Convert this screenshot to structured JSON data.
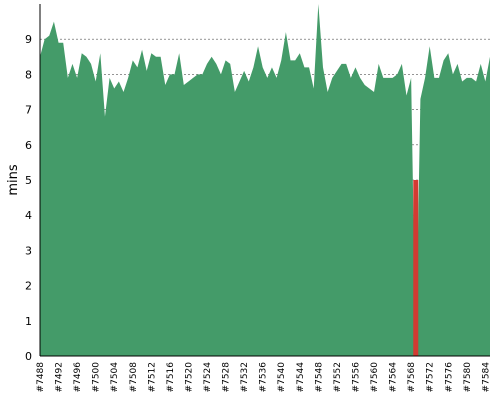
{
  "chart_data": {
    "type": "area",
    "title": "",
    "xlabel": "",
    "ylabel": "mins",
    "ylim": [
      0,
      10
    ],
    "yticks": [
      0,
      1,
      2,
      3,
      4,
      5,
      6,
      7,
      8,
      9
    ],
    "grid": "horizontal dashed",
    "x_start": 7488,
    "x_end": 7585,
    "tick_prefix": "#",
    "xticks": [
      "#7488",
      "#7492",
      "#7496",
      "#7500",
      "#7504",
      "#7508",
      "#7512",
      "#7516",
      "#7520",
      "#7524",
      "#7528",
      "#7532",
      "#7536",
      "#7540",
      "#7544",
      "#7548",
      "#7552",
      "#7556",
      "#7560",
      "#7564",
      "#7568",
      "#7572",
      "#7576",
      "#7580",
      "#7584"
    ],
    "colors": {
      "area": "#449b69",
      "highlight": "#d33a32",
      "grid": "#555555"
    },
    "series": [
      {
        "values": [
          8.5,
          9.0,
          9.1,
          9.5,
          8.9,
          8.9,
          7.9,
          8.3,
          7.9,
          8.6,
          8.5,
          8.3,
          7.8,
          8.6,
          6.8,
          7.9,
          7.6,
          7.8,
          7.5,
          7.9,
          8.4,
          8.2,
          8.7,
          8.1,
          8.6,
          8.5,
          8.5,
          7.7,
          8.0,
          8.0,
          8.6,
          7.7,
          7.8,
          7.9,
          8.0,
          8.0,
          8.3,
          8.5,
          8.3,
          8.0,
          8.4,
          8.3,
          7.5,
          7.8,
          8.1,
          7.8,
          8.2,
          8.8,
          8.2,
          7.9,
          8.2,
          7.9,
          8.4,
          9.2,
          8.4,
          8.4,
          8.6,
          8.2,
          8.2,
          7.6,
          10.0,
          8.2,
          7.5,
          7.9,
          8.1,
          8.3,
          8.3,
          7.9,
          8.2,
          7.9,
          7.7,
          7.6,
          7.5,
          8.3,
          7.9,
          7.9,
          7.9,
          8.0,
          8.3,
          7.4,
          7.9,
          0.0,
          7.3,
          7.9,
          8.8,
          7.9,
          7.9,
          8.4,
          8.6,
          8.0,
          8.3,
          7.8,
          7.9,
          7.9,
          7.8,
          8.3,
          7.8,
          8.5
        ]
      }
    ],
    "highlight_bars": [
      {
        "x": 7569,
        "value": 5.0
      }
    ]
  }
}
